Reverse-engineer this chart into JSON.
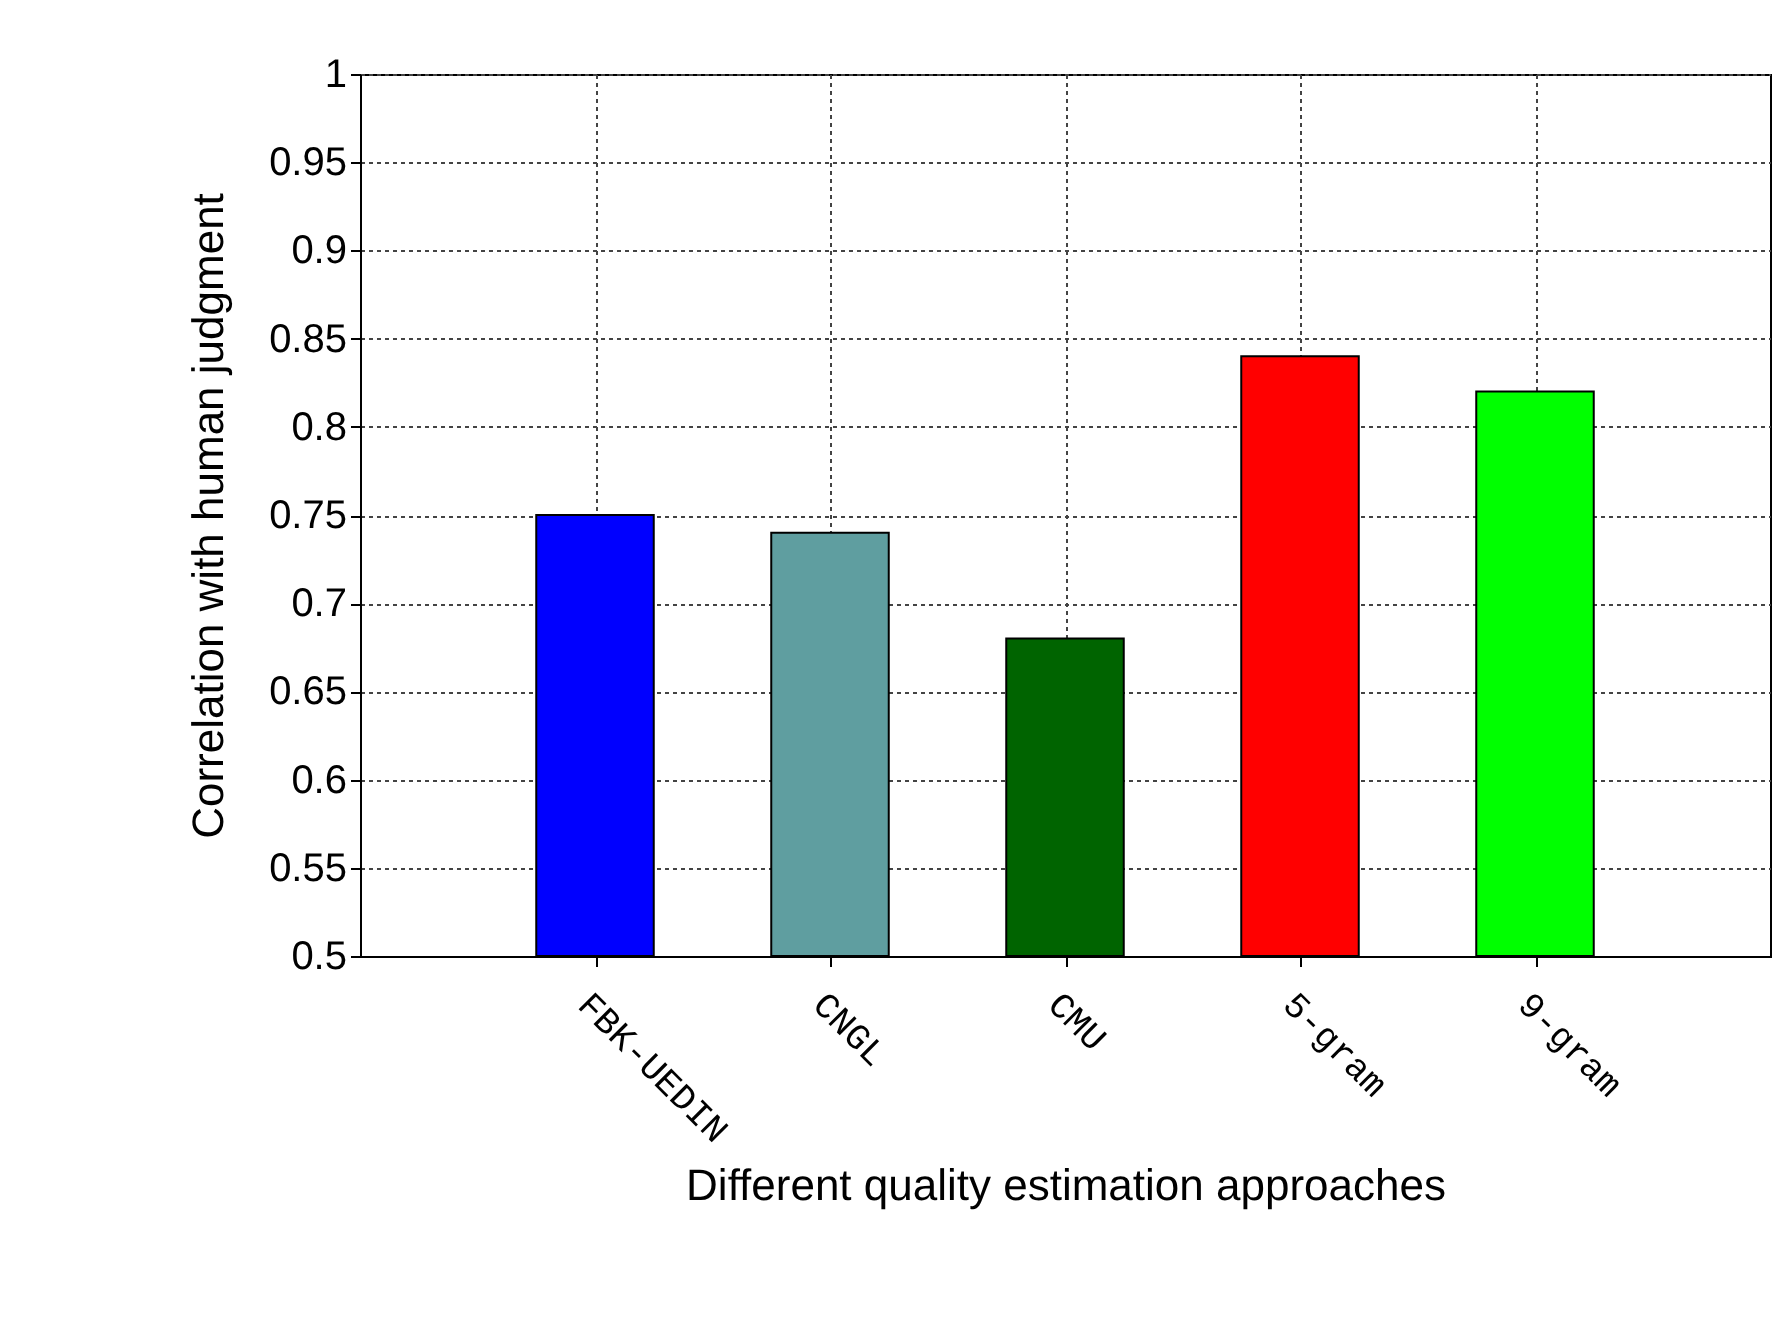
{
  "chart_data": {
    "type": "bar",
    "xlabel": "Different quality estimation approaches",
    "ylabel": "Correlation with human judgment",
    "categories": [
      "FBK-UEDIN",
      "CNGL",
      "CMU",
      "5-gram",
      "9-gram"
    ],
    "values": [
      0.75,
      0.74,
      0.68,
      0.84,
      0.82
    ],
    "colors": [
      "#0000ff",
      "#5f9ea0",
      "#006400",
      "#ff0000",
      "#00ff00"
    ],
    "ylim": [
      0.5,
      1
    ],
    "yticks": [
      0.5,
      0.55,
      0.6,
      0.65,
      0.7,
      0.75,
      0.8,
      0.85,
      0.9,
      0.95,
      1
    ],
    "grid": true
  }
}
